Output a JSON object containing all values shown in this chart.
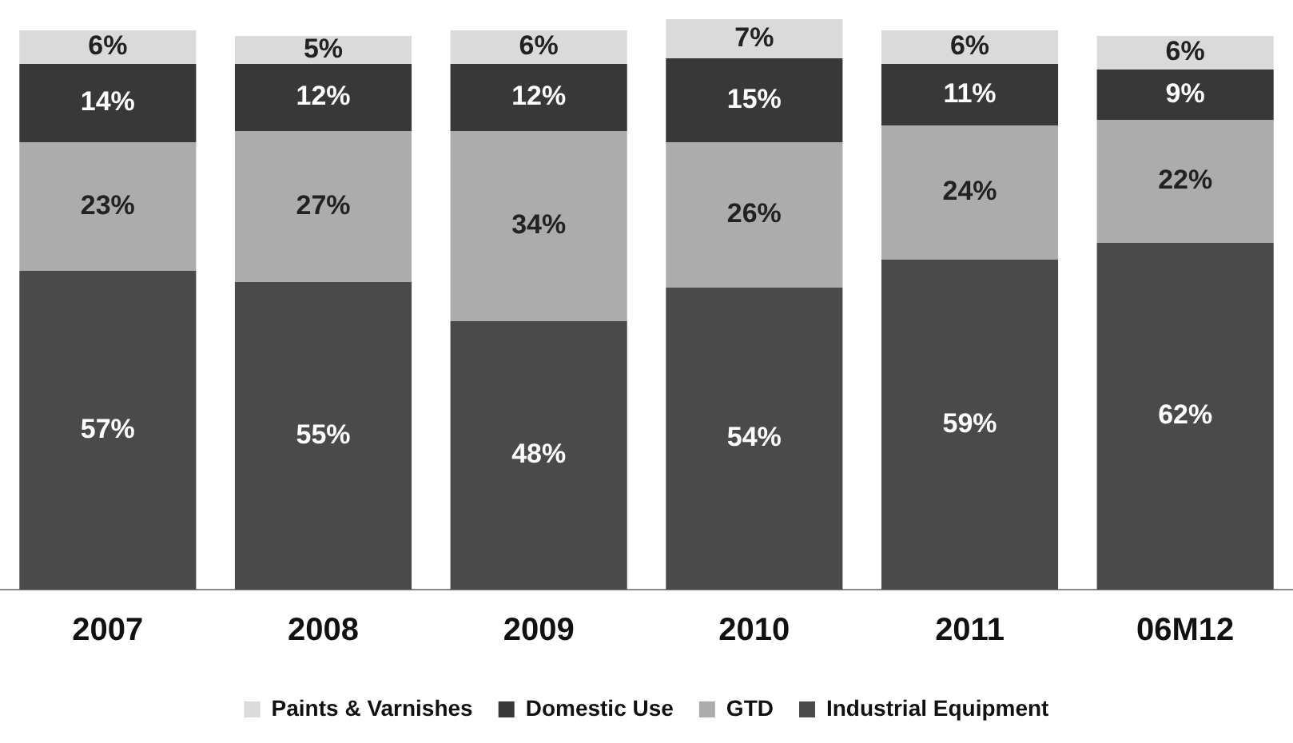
{
  "chart_data": {
    "type": "bar",
    "stacked": true,
    "legend": "bottom",
    "categories": [
      "2007",
      "2008",
      "2009",
      "2010",
      "2011",
      "06M12"
    ],
    "series": [
      {
        "name": "Industrial Equipment",
        "color": "#4a4a4a",
        "values": [
          57,
          55,
          48,
          54,
          59,
          62
        ],
        "value_labels": [
          "57%",
          "55%",
          "48%",
          "54%",
          "59%",
          "62%"
        ]
      },
      {
        "name": "GTD",
        "color": "#acacac",
        "values": [
          23,
          27,
          34,
          26,
          24,
          22
        ],
        "value_labels": [
          "23%",
          "27%",
          "34%",
          "26%",
          "24%",
          "22%"
        ]
      },
      {
        "name": "Domestic Use",
        "color": "#383838",
        "values": [
          14,
          12,
          12,
          15,
          11,
          9
        ],
        "value_labels": [
          "14%",
          "12%",
          "12%",
          "15%",
          "11%",
          "9%"
        ]
      },
      {
        "name": "Paints & Varnishes",
        "color": "#dadada",
        "values": [
          6,
          5,
          6,
          7,
          6,
          6
        ],
        "value_labels": [
          "6%",
          "5%",
          "6%",
          "7%",
          "6%",
          "6%"
        ]
      }
    ]
  }
}
